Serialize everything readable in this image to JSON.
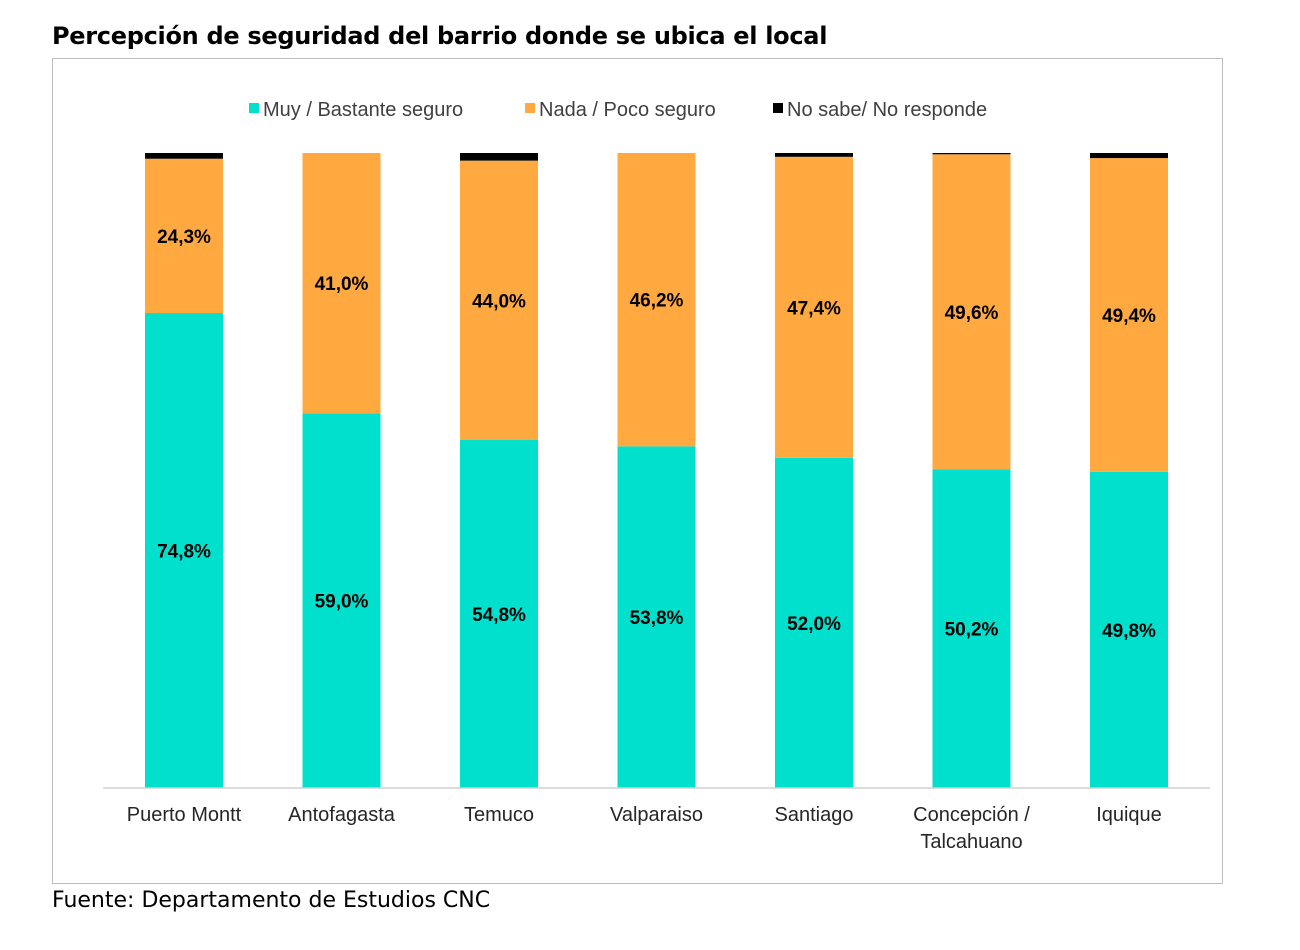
{
  "page": {
    "title": "Percepción de seguridad del barrio donde se ubica el local",
    "source": "Fuente: Departamento de Estudios CNC"
  },
  "chart_data": {
    "type": "bar",
    "stacked": true,
    "normalized": true,
    "categories": [
      "Puerto Montt",
      "Antofagasta",
      "Temuco",
      "Valparaiso",
      "Santiago",
      "Concepción / Talcahuano",
      "Iquique"
    ],
    "category_lines": [
      [
        "Puerto Montt"
      ],
      [
        "Antofagasta"
      ],
      [
        "Temuco"
      ],
      [
        "Valparaiso"
      ],
      [
        "Santiago"
      ],
      [
        "Concepción /",
        "Talcahuano"
      ],
      [
        "Iquique"
      ]
    ],
    "series": [
      {
        "name": "Muy / Bastante seguro",
        "color": "#00e0cc",
        "values": [
          74.8,
          59.0,
          54.8,
          53.8,
          52.0,
          50.2,
          49.8
        ],
        "labels": [
          "74,8%",
          "59,0%",
          "54,8%",
          "53,8%",
          "52,0%",
          "50,2%",
          "49,8%"
        ]
      },
      {
        "name": "Nada / Poco seguro",
        "color": "#ffa940",
        "values": [
          24.3,
          41.0,
          44.0,
          46.2,
          47.4,
          49.6,
          49.4
        ],
        "labels": [
          "24,3%",
          "41,0%",
          "44,0%",
          "46,2%",
          "47,4%",
          "49,6%",
          "49,4%"
        ]
      },
      {
        "name": "No sabe/ No responde",
        "color": "#000000",
        "values": [
          0.9,
          0.0,
          1.2,
          0.0,
          0.6,
          0.2,
          0.8
        ],
        "labels": [
          "",
          "",
          "",
          "",
          "",
          "",
          ""
        ]
      }
    ],
    "legend_position": "top-center",
    "ylim": [
      0,
      100
    ],
    "grid": false,
    "y_axis_visible": false
  }
}
